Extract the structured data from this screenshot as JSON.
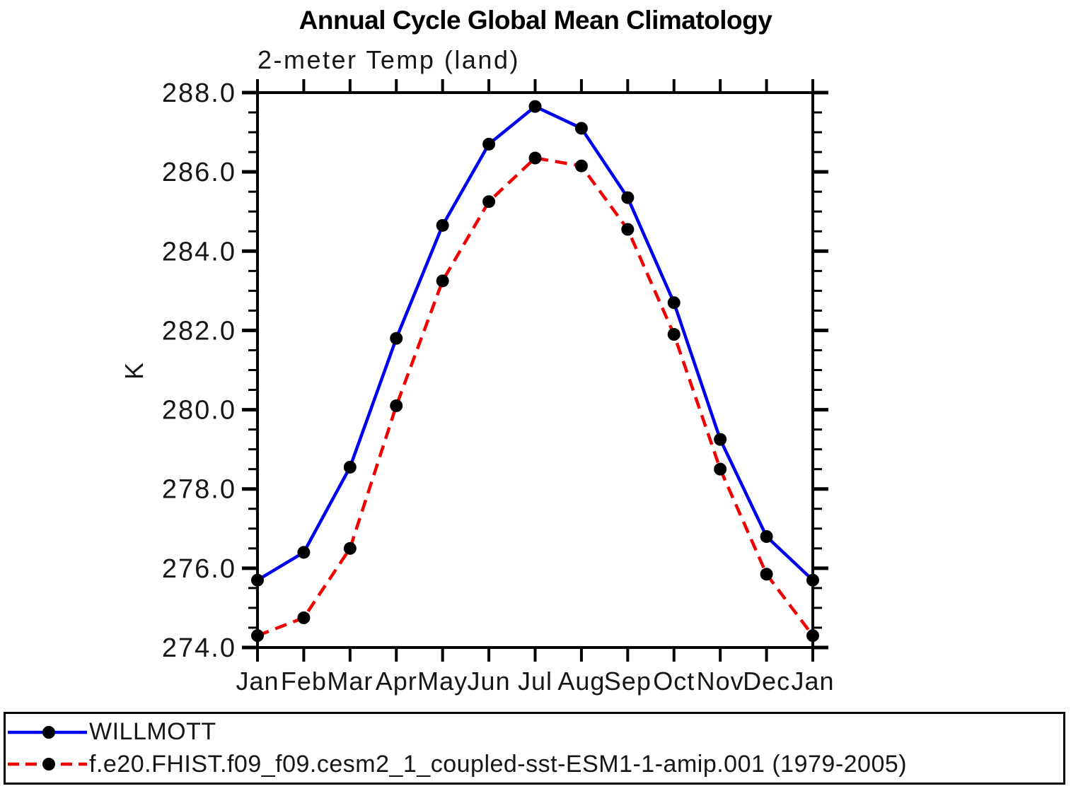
{
  "page": {
    "background": "#ffffff"
  },
  "chart_data": {
    "type": "line",
    "title": "Annual Cycle Global Mean Climatology",
    "subtitle": "2-meter Temp (land)",
    "ylabel": "K",
    "xlabel": "",
    "categories": [
      "Jan",
      "Feb",
      "Mar",
      "Apr",
      "May",
      "Jun",
      "Jul",
      "Aug",
      "Sep",
      "Oct",
      "Nov",
      "Dec",
      "Jan"
    ],
    "ylim": [
      274.0,
      288.0
    ],
    "ytick_step": 2.0,
    "ytick_minor_step": 0.5,
    "ytick_labels": [
      "288.0",
      "286.0",
      "284.0",
      "282.0",
      "280.0",
      "278.0",
      "276.0",
      "274.0"
    ],
    "grid": false,
    "legend_position": "bottom-full-width-box",
    "axis_color": "#000000",
    "marker_color": "#000000",
    "series": [
      {
        "name": "WILLMOTT",
        "color": "#0000f0",
        "line_style": "solid",
        "marker": "filled-circle",
        "values": [
          275.7,
          276.4,
          278.55,
          281.8,
          284.65,
          286.7,
          287.65,
          287.1,
          285.35,
          282.7,
          279.25,
          276.8,
          275.7
        ]
      },
      {
        "name": "f.e20.FHIST.f09_f09.cesm2_1_coupled-sst-ESM1-1-amip.001 (1979-2005)",
        "color": "#f00000",
        "line_style": "dashed",
        "marker": "filled-circle",
        "values": [
          274.3,
          274.75,
          276.5,
          280.1,
          283.25,
          285.25,
          286.35,
          286.15,
          284.55,
          281.9,
          278.5,
          275.85,
          274.3
        ]
      }
    ]
  }
}
